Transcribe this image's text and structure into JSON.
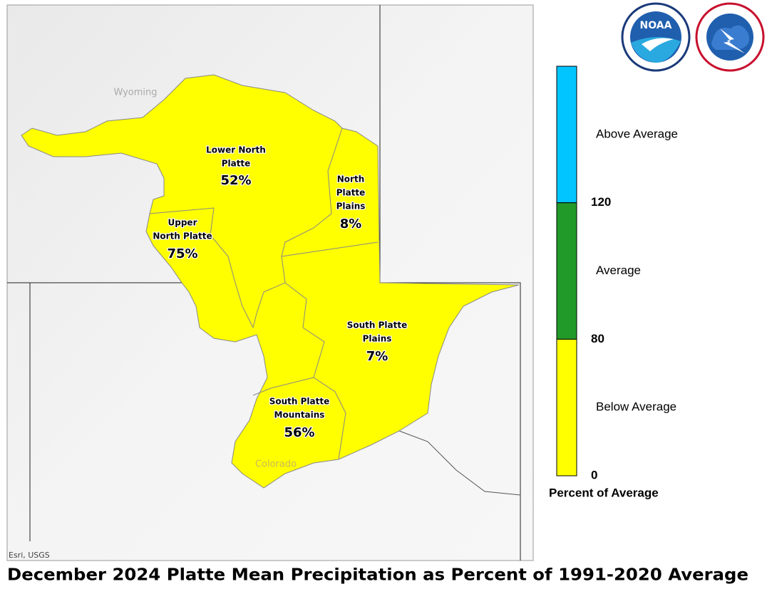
{
  "title": "December 2024 Platte Mean Precipitation as Percent of 1991-2020 Average",
  "map": {
    "states": [
      "Wyoming",
      "Colorado"
    ],
    "attribution": "Esri, USGS",
    "basins": [
      {
        "name": [
          "Lower North",
          "Platte"
        ],
        "value": "52%"
      },
      {
        "name": [
          "North",
          "Platte",
          "Plains"
        ],
        "value": "8%"
      },
      {
        "name": [
          "Upper",
          "North Platte"
        ],
        "value": "75%"
      },
      {
        "name": [
          "South Platte",
          "Plains"
        ],
        "value": "7%"
      },
      {
        "name": [
          "South Platte",
          "Mountains"
        ],
        "value": "56%"
      }
    ],
    "fill_color": "#ffff00"
  },
  "legend": {
    "title": "Percent of Average",
    "classes": [
      {
        "label": "Above Average",
        "color": "#00c5ff"
      },
      {
        "label": "Average",
        "color": "#229a2a"
      },
      {
        "label": "Below Average",
        "color": "#ffff00"
      }
    ],
    "ticks": [
      "120",
      "80",
      "0"
    ]
  },
  "logos": {
    "noaa": "NOAA"
  }
}
